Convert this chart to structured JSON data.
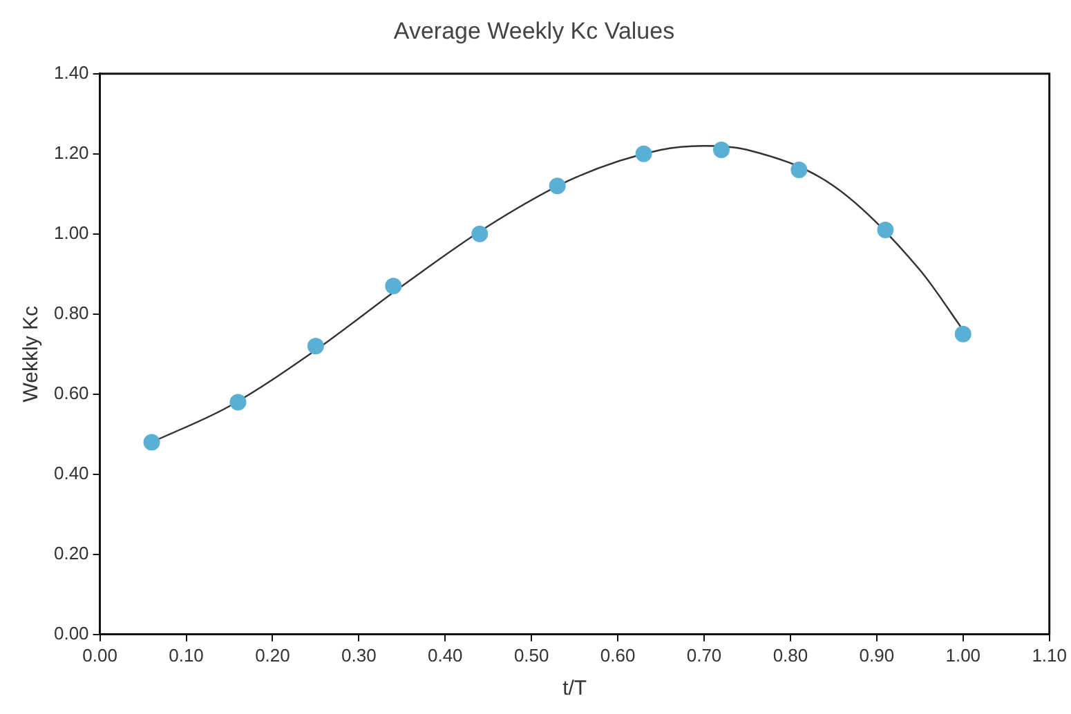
{
  "chart_data": {
    "type": "scatter",
    "title": "Average Weekly Kc Values",
    "xlabel": "t/T",
    "ylabel": "Wekkly Kc",
    "xlim": [
      0,
      1.1
    ],
    "xticks": [
      {
        "value": 0,
        "label": "0.00"
      },
      {
        "value": 0.1,
        "label": "0.10"
      },
      {
        "value": 0.2,
        "label": "0.20"
      },
      {
        "value": 0.3,
        "label": "0.30"
      },
      {
        "value": 0.4,
        "label": "0.40"
      },
      {
        "value": 0.5,
        "label": "0.50"
      },
      {
        "value": 0.6,
        "label": "0.60"
      },
      {
        "value": 0.7,
        "label": "0.70"
      },
      {
        "value": 0.8,
        "label": "0.80"
      },
      {
        "value": 0.9,
        "label": "0.90"
      },
      {
        "value": 1.0,
        "label": "1.00"
      },
      {
        "value": 1.1,
        "label": "1.10"
      }
    ],
    "ylim": [
      0,
      1.4
    ],
    "yticks": [
      {
        "value": 0,
        "label": "0.00"
      },
      {
        "value": 0.2,
        "label": "0.20"
      },
      {
        "value": 0.4,
        "label": "0.40"
      },
      {
        "value": 0.6,
        "label": "0.60"
      },
      {
        "value": 0.8,
        "label": "0.80"
      },
      {
        "value": 1.0,
        "label": "1.00"
      },
      {
        "value": 1.2,
        "label": "1.20"
      },
      {
        "value": 1.4,
        "label": "1.40"
      }
    ],
    "grid": false,
    "legend": false,
    "marker": "circle",
    "series": [
      {
        "type": "line",
        "color": "#333333",
        "marker": "none",
        "x": [
          0.06,
          0.15,
          0.25,
          0.35,
          0.45,
          0.55,
          0.65,
          0.7,
          0.75,
          0.85,
          0.95,
          1.0
        ],
        "values": [
          0.48,
          0.57,
          0.71,
          0.87,
          1.02,
          1.14,
          1.21,
          1.22,
          1.21,
          1.12,
          0.91,
          0.76
        ]
      },
      {
        "color": "#5aafd4",
        "x": [
          0.06,
          0.16,
          0.25,
          0.34,
          0.44,
          0.53,
          0.63,
          0.72,
          0.81,
          0.91,
          1.0
        ],
        "values": [
          0.48,
          0.58,
          0.72,
          0.87,
          1.0,
          1.12,
          1.2,
          1.21,
          1.16,
          1.01,
          0.75
        ]
      }
    ]
  }
}
